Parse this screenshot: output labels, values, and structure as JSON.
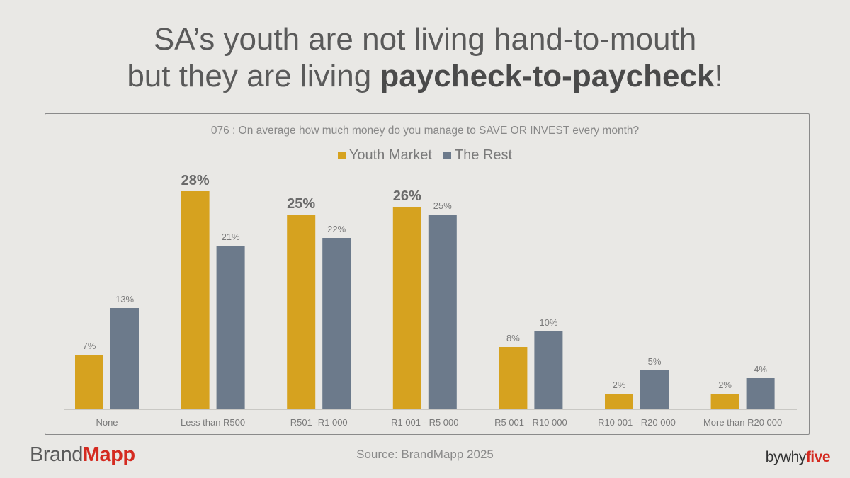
{
  "headline": {
    "line1": "SA’s youth are not living hand-to-mouth",
    "line2_prefix": "but they are living ",
    "line2_bold": "paycheck-to-paycheck",
    "line2_suffix": "!"
  },
  "footer": {
    "brand_left": "Brand",
    "brand_right": "Mapp",
    "source": "Source: BrandMapp 2025",
    "credit_prefix": "bywhy",
    "credit_strong": "five"
  },
  "colors": {
    "youth": "#d6a21f",
    "rest": "#6c7a8b"
  },
  "chart_data": {
    "type": "bar",
    "title": "076 : On average how much money do you manage to SAVE OR INVEST every month?",
    "legend_position": "top",
    "categories": [
      "None",
      "Less than R500",
      "R501 -R1 000",
      "R1 001 - R5 000",
      "R5 001 - R10 000",
      "R10 001 - R20 000",
      "More than R20 000"
    ],
    "series": [
      {
        "name": "Youth Market",
        "values": [
          7,
          28,
          25,
          26,
          8,
          2,
          2
        ],
        "labels": [
          "7%",
          "28%",
          "25%",
          "26%",
          "8%",
          "2%",
          "2%"
        ]
      },
      {
        "name": "The Rest",
        "values": [
          13,
          21,
          22,
          25,
          10,
          5,
          4
        ],
        "labels": [
          "13%",
          "21%",
          "22%",
          "25%",
          "10%",
          "5%",
          "4%"
        ]
      }
    ],
    "ylim": [
      0,
      28
    ],
    "grid": false
  }
}
